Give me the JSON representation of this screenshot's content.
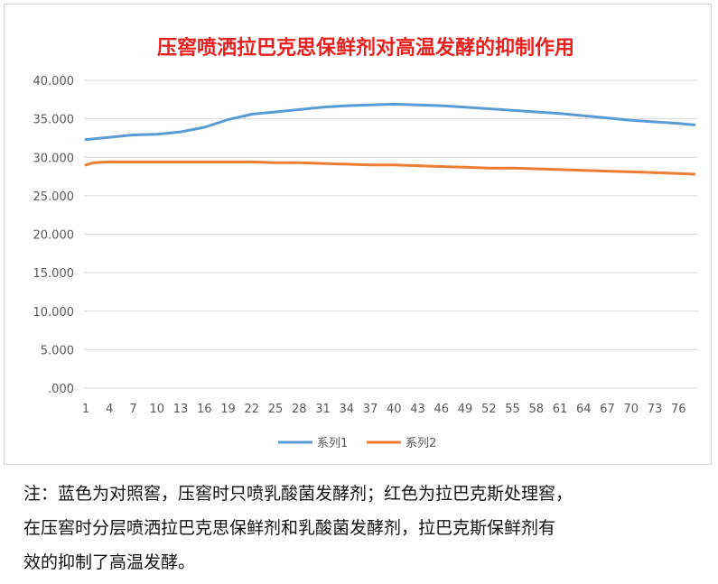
{
  "chart_data": {
    "type": "line",
    "title": "压窖喷洒拉巴克思保鲜剂对高温发酵的抑制作用",
    "title_color": "#e8201e",
    "xlabel": "",
    "ylabel": "",
    "x_ticks": [
      "1",
      "4",
      "7",
      "10",
      "13",
      "16",
      "19",
      "22",
      "25",
      "28",
      "31",
      "34",
      "37",
      "40",
      "43",
      "46",
      "49",
      "52",
      "55",
      "58",
      "61",
      "64",
      "67",
      "70",
      "73",
      "76"
    ],
    "y_ticks": [
      ".000",
      "5.000",
      "10.000",
      "15.000",
      "20.000",
      "25.000",
      "30.000",
      "35.000",
      "40.000"
    ],
    "ylim": [
      0,
      40
    ],
    "xlim": [
      1,
      78
    ],
    "grid": true,
    "legend_position": "bottom",
    "series": [
      {
        "name": "系列1",
        "color": "#5b9bd5",
        "points": [
          [
            1,
            32.3
          ],
          [
            4,
            32.6
          ],
          [
            7,
            32.9
          ],
          [
            10,
            33.0
          ],
          [
            13,
            33.3
          ],
          [
            16,
            33.9
          ],
          [
            19,
            34.9
          ],
          [
            22,
            35.6
          ],
          [
            25,
            35.9
          ],
          [
            28,
            36.2
          ],
          [
            31,
            36.5
          ],
          [
            34,
            36.7
          ],
          [
            37,
            36.8
          ],
          [
            40,
            36.9
          ],
          [
            43,
            36.8
          ],
          [
            46,
            36.7
          ],
          [
            49,
            36.5
          ],
          [
            52,
            36.3
          ],
          [
            55,
            36.1
          ],
          [
            58,
            35.9
          ],
          [
            61,
            35.7
          ],
          [
            64,
            35.4
          ],
          [
            67,
            35.1
          ],
          [
            70,
            34.8
          ],
          [
            73,
            34.6
          ],
          [
            76,
            34.4
          ],
          [
            78,
            34.2
          ]
        ]
      },
      {
        "name": "系列2",
        "color": "#ed7d31",
        "points": [
          [
            1,
            29.0
          ],
          [
            2,
            29.3
          ],
          [
            4,
            29.4
          ],
          [
            7,
            29.4
          ],
          [
            10,
            29.4
          ],
          [
            13,
            29.4
          ],
          [
            16,
            29.4
          ],
          [
            19,
            29.4
          ],
          [
            22,
            29.4
          ],
          [
            25,
            29.3
          ],
          [
            28,
            29.3
          ],
          [
            31,
            29.2
          ],
          [
            34,
            29.1
          ],
          [
            37,
            29.0
          ],
          [
            40,
            29.0
          ],
          [
            43,
            28.9
          ],
          [
            46,
            28.8
          ],
          [
            49,
            28.7
          ],
          [
            52,
            28.6
          ],
          [
            55,
            28.6
          ],
          [
            58,
            28.5
          ],
          [
            61,
            28.4
          ],
          [
            64,
            28.3
          ],
          [
            67,
            28.2
          ],
          [
            70,
            28.1
          ],
          [
            73,
            28.0
          ],
          [
            76,
            27.9
          ],
          [
            78,
            27.8
          ]
        ]
      }
    ]
  },
  "note": {
    "lines": [
      "注：蓝色为对照窖，压窖时只喷乳酸菌发酵剂；红色为拉巴克斯处理窖，",
      "在压窖时分层喷洒拉巴克思保鲜剂和乳酸菌发酵剂，拉巴克斯保鲜剂有",
      "效的抑制了高温发酵。"
    ]
  }
}
